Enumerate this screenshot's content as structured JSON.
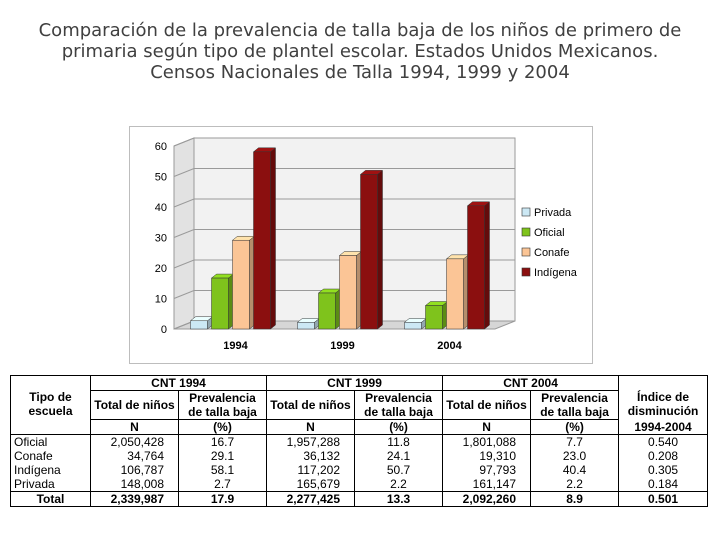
{
  "title": {
    "line1": "Comparación de la prevalencia de talla baja de los niños de primero de",
    "line2": "primaria según tipo de plantel escolar. Estados Unidos Mexicanos.",
    "line3": "Censos Nacionales de Talla 1994, 1999 y 2004"
  },
  "chart_data": {
    "type": "bar",
    "categories": [
      "1994",
      "1999",
      "2004"
    ],
    "series": [
      {
        "name": "Privada",
        "values": [
          2.7,
          2.2,
          2.2
        ],
        "color": "#cce8f4"
      },
      {
        "name": "Oficial",
        "values": [
          16.7,
          11.8,
          7.7
        ],
        "color": "#7fc31c"
      },
      {
        "name": "Conafe",
        "values": [
          29.1,
          24.1,
          23.0
        ],
        "color": "#fbc596"
      },
      {
        "name": "Indígena",
        "values": [
          58.1,
          50.7,
          40.4
        ],
        "color": "#8b0f0f"
      }
    ],
    "y_ticks": [
      "0",
      "10",
      "20",
      "30",
      "40",
      "50",
      "60"
    ],
    "ylim": [
      0,
      60
    ],
    "grid": true,
    "legend_position": "right",
    "xlabel": "",
    "ylabel": ""
  },
  "table": {
    "groups": [
      "CNT 1994",
      "CNT 1999",
      "CNT 2004"
    ],
    "tipo_header": "Tipo de escuela",
    "total_label": "Total de niños",
    "prev_label": "Prevalencia de talla baja",
    "indice_header": "Índice de disminución",
    "n_label": "N",
    "pct_label": "(%)",
    "indice_period": "1994-2004",
    "rows": [
      {
        "tipo": "Oficial",
        "n1994": "2,050,428",
        "p1994": "16.7",
        "n1999": "1,957,288",
        "p1999": "11.8",
        "n2004": "1,801,088",
        "p2004": "7.7",
        "indice": "0.540"
      },
      {
        "tipo": "Conafe",
        "n1994": "34,764",
        "p1994": "29.1",
        "n1999": "36,132",
        "p1999": "24.1",
        "n2004": "19,310",
        "p2004": "23.0",
        "indice": "0.208"
      },
      {
        "tipo": "Indígena",
        "n1994": "106,787",
        "p1994": "58.1",
        "n1999": "117,202",
        "p1999": "50.7",
        "n2004": "97,793",
        "p2004": "40.4",
        "indice": "0.305"
      },
      {
        "tipo": "Privada",
        "n1994": "148,008",
        "p1994": "2.7",
        "n1999": "165,679",
        "p1999": "2.2",
        "n2004": "161,147",
        "p2004": "2.2",
        "indice": "0.184"
      }
    ],
    "total": {
      "tipo": "Total",
      "n1994": "2,339,987",
      "p1994": "17.9",
      "n1999": "2,277,425",
      "p1999": "13.3",
      "n2004": "2,092,260",
      "p2004": "8.9",
      "indice": "0.501"
    }
  }
}
